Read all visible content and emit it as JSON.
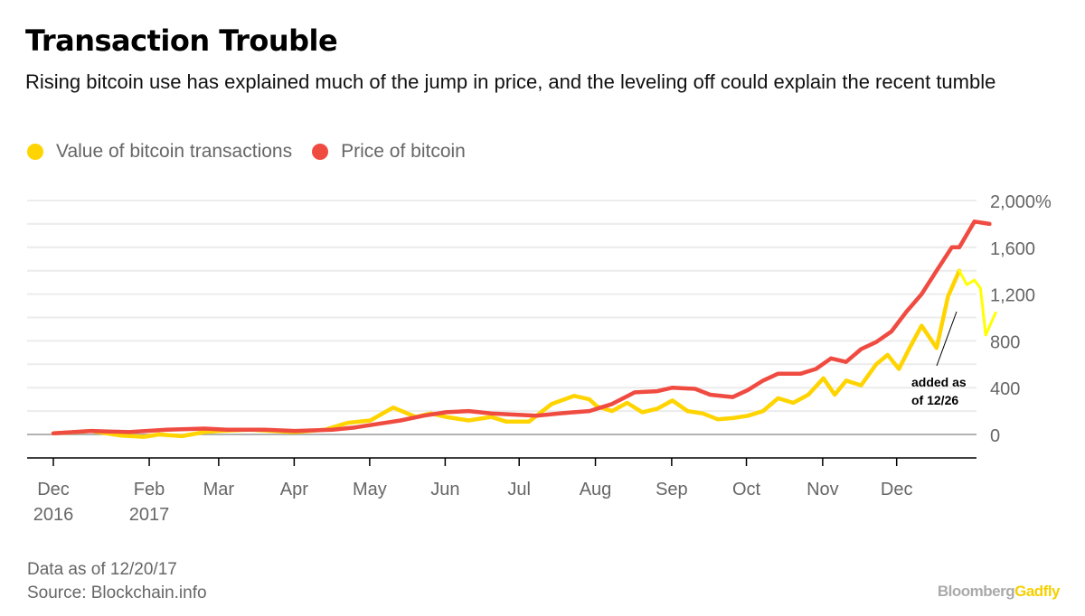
{
  "header": {
    "title": "Transaction Trouble",
    "subtitle": "Rising bitcoin use has explained much of the jump in price, and the leveling off could explain the recent tumble"
  },
  "legend": [
    {
      "label": "Value of bitcoin transactions",
      "color": "#FFD400"
    },
    {
      "label": "Price of bitcoin",
      "color": "#F04B41"
    }
  ],
  "footer": {
    "note": "Data as of 12/20/17",
    "source": "Source: Blockchain.info"
  },
  "brand": {
    "part1": "Bloomberg",
    "part2": "Gadfly"
  },
  "chart_data": {
    "type": "line",
    "title": "Transaction Trouble",
    "xlabel": "",
    "ylabel": "% change",
    "ylim": [
      -200,
      2000
    ],
    "y_ticks": [
      0,
      400,
      800,
      1200,
      1600,
      2000
    ],
    "y_tick_labels": [
      "0",
      "400",
      "800",
      "1,200",
      "1,600",
      "2,000%"
    ],
    "x_ticks": [
      {
        "pos": 0,
        "label": "Dec",
        "sub": "2016"
      },
      {
        "pos": 1.27,
        "label": "Feb",
        "sub": "2017"
      },
      {
        "pos": 2.19,
        "label": "Mar",
        "sub": ""
      },
      {
        "pos": 3.19,
        "label": "Apr",
        "sub": ""
      },
      {
        "pos": 4.19,
        "label": "May",
        "sub": ""
      },
      {
        "pos": 5.19,
        "label": "Jun",
        "sub": ""
      },
      {
        "pos": 6.17,
        "label": "Jul",
        "sub": ""
      },
      {
        "pos": 7.18,
        "label": "Aug",
        "sub": ""
      },
      {
        "pos": 8.19,
        "label": "Sep",
        "sub": ""
      },
      {
        "pos": 9.18,
        "label": "Oct",
        "sub": ""
      },
      {
        "pos": 10.19,
        "label": "Nov",
        "sub": ""
      },
      {
        "pos": 11.17,
        "label": "Dec",
        "sub": ""
      }
    ],
    "x_unit": "months since Dec 1, 2016",
    "grid": true,
    "legend_position": "top-left",
    "annotation": {
      "text_line1": "added as",
      "text_line2": "of 12/26",
      "x": 12.18,
      "y": 1000
    },
    "series": [
      {
        "name": "Value of bitcoin transactions",
        "color": "#FFD400",
        "x": [
          0,
          0.3,
          0.5,
          0.9,
          1.2,
          1.4,
          1.7,
          2.0,
          2.2,
          2.6,
          2.9,
          3.2,
          3.6,
          3.9,
          4.2,
          4.5,
          4.8,
          5.0,
          5.2,
          5.5,
          5.8,
          6.0,
          6.3,
          6.6,
          6.9,
          7.1,
          7.2,
          7.4,
          7.6,
          7.8,
          8.0,
          8.2,
          8.4,
          8.6,
          8.8,
          9.0,
          9.2,
          9.4,
          9.6,
          9.8,
          10.0,
          10.2,
          10.35,
          10.5,
          10.7,
          10.9,
          11.05,
          11.2,
          11.35,
          11.5,
          11.7,
          11.85,
          12.0
        ],
        "values": [
          10,
          20,
          30,
          -10,
          -20,
          0,
          -15,
          20,
          30,
          40,
          30,
          20,
          40,
          100,
          120,
          230,
          150,
          180,
          150,
          120,
          150,
          110,
          110,
          260,
          330,
          300,
          240,
          200,
          270,
          190,
          220,
          290,
          200,
          180,
          130,
          140,
          160,
          200,
          310,
          270,
          340,
          480,
          340,
          460,
          420,
          600,
          680,
          560,
          750,
          930,
          740,
          1180,
          1400
        ]
      },
      {
        "name": "Price of bitcoin",
        "color": "#F04B41",
        "x": [
          0,
          0.5,
          1.0,
          1.5,
          2.0,
          2.3,
          2.8,
          3.2,
          3.7,
          4.0,
          4.3,
          4.6,
          4.9,
          5.2,
          5.5,
          5.8,
          6.1,
          6.4,
          6.7,
          6.9,
          7.1,
          7.4,
          7.7,
          8.0,
          8.2,
          8.5,
          8.7,
          9.0,
          9.2,
          9.4,
          9.6,
          9.9,
          10.1,
          10.3,
          10.5,
          10.7,
          10.9,
          11.1,
          11.3,
          11.5,
          11.7,
          11.9,
          12.0,
          12.2,
          12.4
        ],
        "values": [
          10,
          30,
          20,
          40,
          50,
          40,
          40,
          30,
          40,
          60,
          90,
          120,
          160,
          190,
          200,
          180,
          170,
          160,
          180,
          190,
          200,
          260,
          360,
          370,
          400,
          390,
          340,
          320,
          380,
          460,
          520,
          520,
          560,
          650,
          620,
          730,
          790,
          880,
          1050,
          1200,
          1400,
          1600,
          1600,
          1820,
          1800
        ]
      },
      {
        "name": "Value of bitcoin transactions (added as of 12/26)",
        "color": "#FFFF00",
        "x": [
          12.0,
          12.1,
          12.2,
          12.28,
          12.35,
          12.48
        ],
        "values": [
          1400,
          1280,
          1320,
          1250,
          850,
          1040
        ]
      }
    ]
  }
}
